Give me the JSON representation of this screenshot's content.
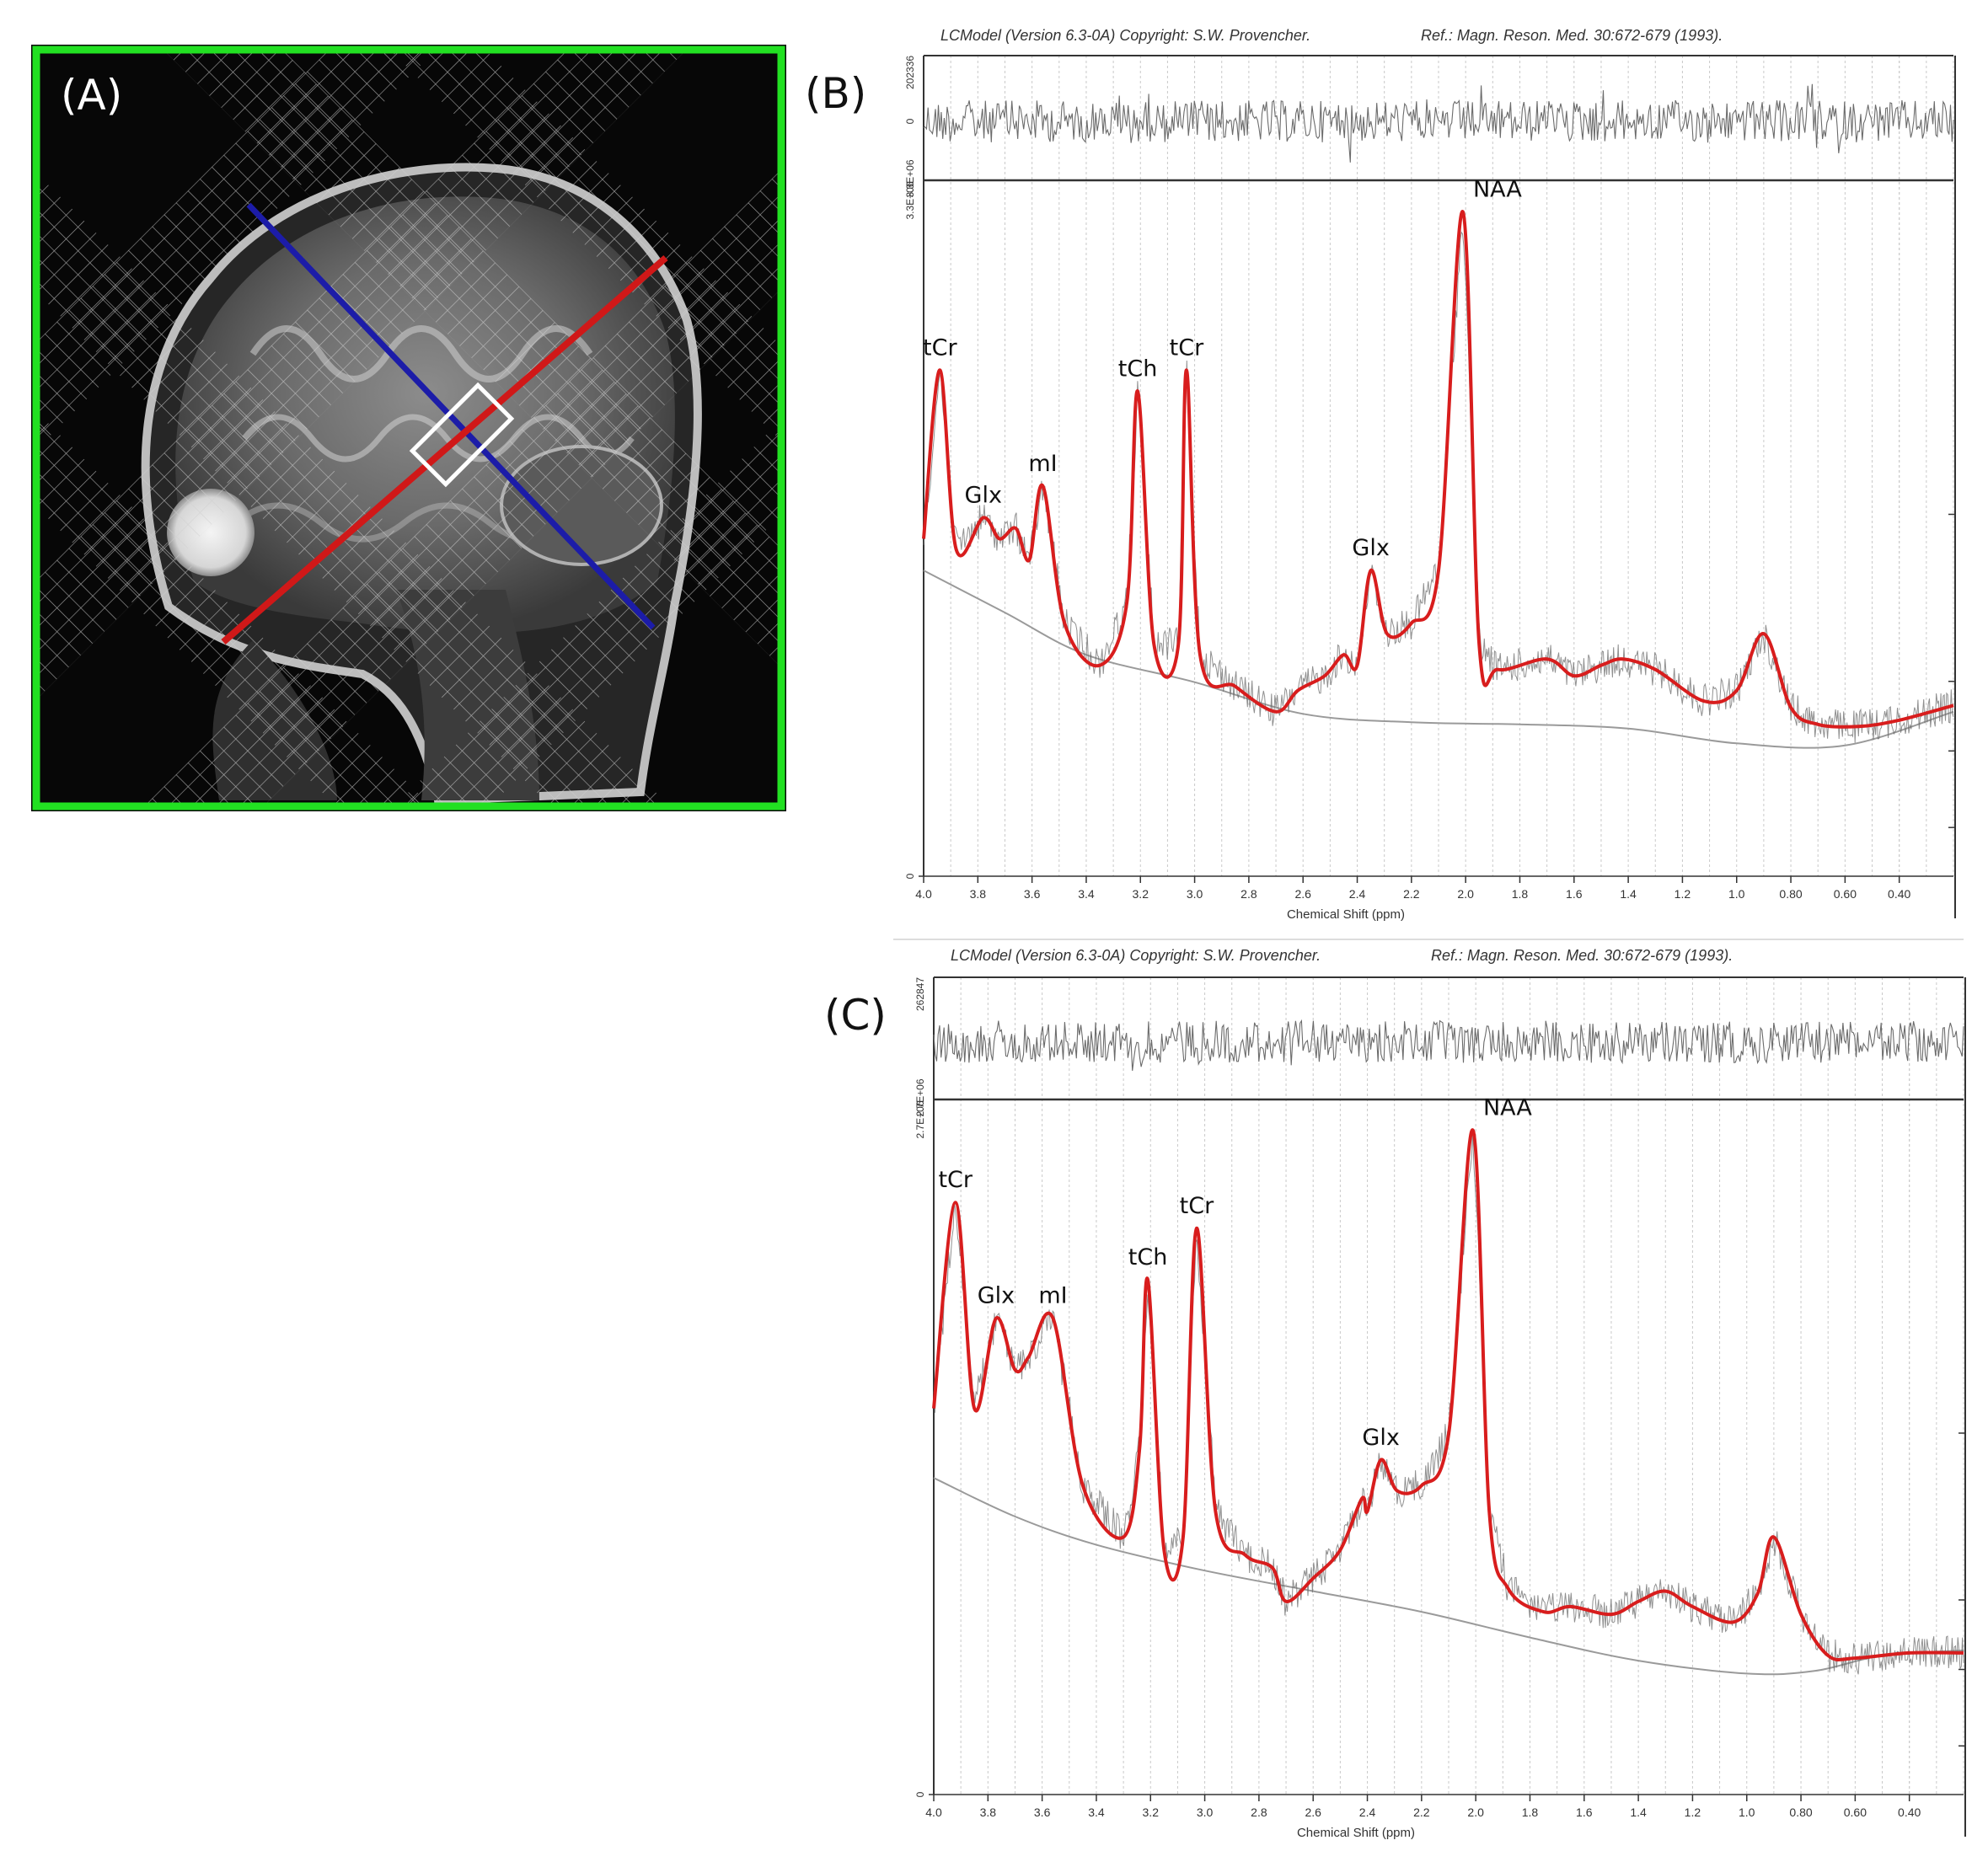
{
  "panels": {
    "A": {
      "letter": "(A)"
    },
    "B": {
      "letter": "(B)"
    },
    "C": {
      "letter": "(C)"
    }
  },
  "colors": {
    "fit": "#d81d1d",
    "baseline": "#9a9a9a",
    "data": "#6b6b6b",
    "frame": "#333333",
    "grid": "#c9c9c9",
    "mri_border": "#22e022",
    "mri_axis_red": "#d01818",
    "mri_axis_blue": "#1c1ca8"
  },
  "chart_data": [
    {
      "type": "line",
      "panel": "(B)",
      "header_left": "LCModel (Version 6.3-0A) Copyright: S.W. Provencher.",
      "header_right": "Ref.: Magn. Reson. Med. 30:672-679 (1993).",
      "xlabel": "Chemical Shift (ppm)",
      "x_reversed": true,
      "xlim": [
        4.0,
        0.2
      ],
      "x_ticks": [
        "4.0",
        "3.8",
        "3.6",
        "3.4",
        "3.2",
        "3.0",
        "2.8",
        "2.6",
        "2.4",
        "2.2",
        "2.0",
        "1.8",
        "1.6",
        "1.4",
        "1.2",
        "1.0",
        "0.80",
        "0.60",
        "0.40"
      ],
      "residual_ticks": [
        "202336",
        "0",
        "3.3E+06"
      ],
      "y_ticks": [
        "3.3E+06",
        "0"
      ],
      "ylim": [
        0,
        3300000
      ],
      "series": [
        {
          "points": [
            [
              4.0,
              1600000.0
            ],
            [
              3.94,
              2400000.0
            ],
            [
              3.88,
              1550000.0
            ],
            [
              3.78,
              1700000.0
            ],
            [
              3.72,
              1600000.0
            ],
            [
              3.66,
              1650000.0
            ],
            [
              3.61,
              1500000.0
            ],
            [
              3.56,
              1850000.0
            ],
            [
              3.48,
              1200000.0
            ],
            [
              3.35,
              1000000.0
            ],
            [
              3.25,
              1300000.0
            ],
            [
              3.21,
              2300000.0
            ],
            [
              3.15,
              1100000.0
            ],
            [
              3.06,
              1100000.0
            ],
            [
              3.03,
              2400000.0
            ],
            [
              2.98,
              1050000.0
            ],
            [
              2.85,
              900000.0
            ],
            [
              2.7,
              780000.0
            ],
            [
              2.62,
              880000.0
            ],
            [
              2.52,
              950000.0
            ],
            [
              2.45,
              1050000.0
            ],
            [
              2.4,
              1000000.0
            ],
            [
              2.35,
              1450000.0
            ],
            [
              2.29,
              1150000.0
            ],
            [
              2.2,
              1200000.0
            ],
            [
              2.1,
              1450000.0
            ],
            [
              2.01,
              3150000.0
            ],
            [
              1.95,
              1100000.0
            ],
            [
              1.88,
              980000.0
            ],
            [
              1.7,
              1030000.0
            ],
            [
              1.6,
              950000.0
            ],
            [
              1.5,
              1000000.0
            ],
            [
              1.42,
              1030000.0
            ],
            [
              1.3,
              980000.0
            ],
            [
              1.12,
              830000.0
            ],
            [
              1.0,
              880000.0
            ],
            [
              0.9,
              1150000.0
            ],
            [
              0.8,
              800000.0
            ],
            [
              0.7,
              720000.0
            ],
            [
              0.55,
              710000.0
            ],
            [
              0.4,
              740000.0
            ],
            [
              0.2,
              810000.0
            ]
          ]
        },
        {
          "points": [
            [
              4.0,
              1450000.0
            ],
            [
              3.7,
              1250000.0
            ],
            [
              3.4,
              1050000.0
            ],
            [
              3.0,
              920000.0
            ],
            [
              2.6,
              770000.0
            ],
            [
              2.2,
              730000.0
            ],
            [
              1.8,
              720000.0
            ],
            [
              1.4,
              700000.0
            ],
            [
              1.0,
              630000.0
            ],
            [
              0.6,
              620000.0
            ],
            [
              0.2,
              780000.0
            ]
          ]
        }
      ],
      "annotations": [
        {
          "text": "tCr",
          "x": 3.94
        },
        {
          "text": "Glx",
          "x": 3.78
        },
        {
          "text": "mI",
          "x": 3.56
        },
        {
          "text": "tCh",
          "x": 3.21
        },
        {
          "text": "tCr",
          "x": 3.03
        },
        {
          "text": "Glx",
          "x": 2.35
        },
        {
          "text": "NAA",
          "x": 2.01
        }
      ]
    },
    {
      "type": "line",
      "panel": "(C)",
      "header_left": "LCModel (Version 6.3-0A) Copyright: S.W. Provencher.",
      "header_right": "Ref.: Magn. Reson. Med. 30:672-679 (1993).",
      "xlabel": "Chemical Shift (ppm)",
      "x_reversed": true,
      "xlim": [
        4.0,
        0.2
      ],
      "x_ticks": [
        "4.0",
        "3.8",
        "3.6",
        "3.4",
        "3.2",
        "3.0",
        "2.8",
        "2.6",
        "2.4",
        "2.2",
        "2.0",
        "1.8",
        "1.6",
        "1.4",
        "1.2",
        "1.0",
        "0.80",
        "0.60",
        "0.40"
      ],
      "residual_ticks": [
        "262847",
        "2.7E+06"
      ],
      "y_ticks": [
        "2.7E+06",
        "0"
      ],
      "ylim": [
        0,
        2700000
      ],
      "series": [
        {
          "points": [
            [
              4.0,
              1500000.0
            ],
            [
              3.92,
              2300000.0
            ],
            [
              3.85,
              1500000.0
            ],
            [
              3.77,
              1850000.0
            ],
            [
              3.7,
              1650000.0
            ],
            [
              3.65,
              1700000.0
            ],
            [
              3.56,
              1850000.0
            ],
            [
              3.45,
              1200000.0
            ],
            [
              3.3,
              1000000.0
            ],
            [
              3.24,
              1350000.0
            ],
            [
              3.21,
              2000000.0
            ],
            [
              3.15,
              950000.0
            ],
            [
              3.08,
              1000000.0
            ],
            [
              3.03,
              2200000.0
            ],
            [
              2.96,
              1100000.0
            ],
            [
              2.85,
              930000.0
            ],
            [
              2.75,
              880000.0
            ],
            [
              2.7,
              750000.0
            ],
            [
              2.6,
              840000.0
            ],
            [
              2.5,
              950000.0
            ],
            [
              2.42,
              1150000.0
            ],
            [
              2.4,
              1100000.0
            ],
            [
              2.35,
              1300000.0
            ],
            [
              2.29,
              1180000.0
            ],
            [
              2.2,
              1200000.0
            ],
            [
              2.1,
              1400000.0
            ],
            [
              2.01,
              2580000.0
            ],
            [
              1.95,
              1100000.0
            ],
            [
              1.88,
              800000.0
            ],
            [
              1.75,
              710000.0
            ],
            [
              1.65,
              730000.0
            ],
            [
              1.5,
              700000.0
            ],
            [
              1.4,
              750000.0
            ],
            [
              1.3,
              790000.0
            ],
            [
              1.2,
              730000.0
            ],
            [
              1.05,
              670000.0
            ],
            [
              0.96,
              780000.0
            ],
            [
              0.9,
              1000000.0
            ],
            [
              0.8,
              700000.0
            ],
            [
              0.7,
              540000.0
            ],
            [
              0.6,
              530000.0
            ],
            [
              0.4,
              550000.0
            ],
            [
              0.2,
              550000.0
            ]
          ]
        },
        {
          "points": [
            [
              4.0,
              1230000.0
            ],
            [
              3.7,
              1080000.0
            ],
            [
              3.4,
              970000.0
            ],
            [
              3.0,
              870000.0
            ],
            [
              2.6,
              790000.0
            ],
            [
              2.2,
              710000.0
            ],
            [
              1.8,
              610000.0
            ],
            [
              1.4,
              520000.0
            ],
            [
              1.0,
              470000.0
            ],
            [
              0.75,
              480000.0
            ],
            [
              0.5,
              540000.0
            ],
            [
              0.2,
              560000.0
            ]
          ]
        }
      ],
      "annotations": [
        {
          "text": "tCr",
          "x": 3.92
        },
        {
          "text": "Glx",
          "x": 3.77
        },
        {
          "text": "mI",
          "x": 3.56
        },
        {
          "text": "tCh",
          "x": 3.21
        },
        {
          "text": "tCr",
          "x": 3.03
        },
        {
          "text": "Glx",
          "x": 2.35
        },
        {
          "text": "NAA",
          "x": 2.01
        }
      ]
    }
  ]
}
